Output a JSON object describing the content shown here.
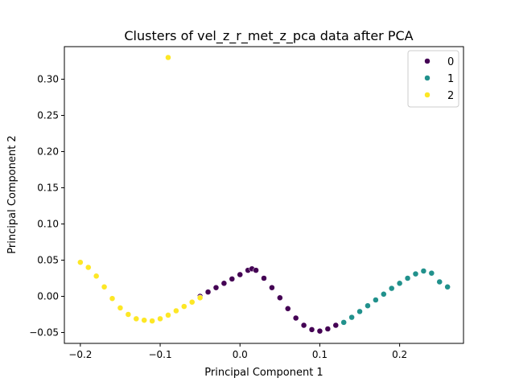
{
  "chart_data": {
    "type": "scatter",
    "title": "Clusters of vel_z_r_met_z_pca data after PCA",
    "xlabel": "Principal Component 1",
    "ylabel": "Principal Component 2",
    "xlim": [
      -0.22,
      0.28
    ],
    "ylim": [
      -0.065,
      0.345
    ],
    "xticks": [
      -0.2,
      -0.1,
      0.0,
      0.1,
      0.2
    ],
    "xtick_labels": [
      "−0.2",
      "−0.1",
      "0.0",
      "0.1",
      "0.2"
    ],
    "yticks": [
      -0.05,
      0.0,
      0.05,
      0.1,
      0.15,
      0.2,
      0.25,
      0.3
    ],
    "ytick_labels": [
      "−0.05",
      "0.00",
      "0.05",
      "0.10",
      "0.15",
      "0.20",
      "0.25",
      "0.30"
    ],
    "grid": false,
    "legend_position": "top-right",
    "series": [
      {
        "name": "0",
        "color": "#440154",
        "x": [
          -0.05,
          -0.04,
          -0.03,
          -0.02,
          -0.01,
          0.0,
          0.01,
          0.015,
          0.02,
          0.03,
          0.04,
          0.05,
          0.06,
          0.07,
          0.08,
          0.09,
          0.1,
          0.11,
          0.12,
          0.13
        ],
        "y": [
          0.0,
          0.006,
          0.012,
          0.018,
          0.024,
          0.03,
          0.036,
          0.038,
          0.036,
          0.025,
          0.012,
          -0.002,
          -0.017,
          -0.03,
          -0.04,
          -0.046,
          -0.048,
          -0.045,
          -0.04,
          -0.036
        ]
      },
      {
        "name": "1",
        "color": "#21918c",
        "x": [
          0.13,
          0.14,
          0.15,
          0.16,
          0.17,
          0.18,
          0.19,
          0.2,
          0.21,
          0.22,
          0.23,
          0.24,
          0.25,
          0.26
        ],
        "y": [
          -0.036,
          -0.029,
          -0.021,
          -0.013,
          -0.005,
          0.003,
          0.011,
          0.018,
          0.025,
          0.031,
          0.035,
          0.032,
          0.02,
          0.013
        ]
      },
      {
        "name": "2",
        "color": "#fde725",
        "x": [
          -0.2,
          -0.19,
          -0.18,
          -0.17,
          -0.16,
          -0.15,
          -0.14,
          -0.13,
          -0.12,
          -0.11,
          -0.1,
          -0.09,
          -0.08,
          -0.07,
          -0.06,
          -0.05,
          -0.09
        ],
        "y": [
          0.047,
          0.04,
          0.028,
          0.013,
          -0.003,
          -0.016,
          -0.025,
          -0.031,
          -0.033,
          -0.034,
          -0.031,
          -0.026,
          -0.02,
          -0.014,
          -0.008,
          -0.002,
          0.33
        ]
      }
    ]
  }
}
